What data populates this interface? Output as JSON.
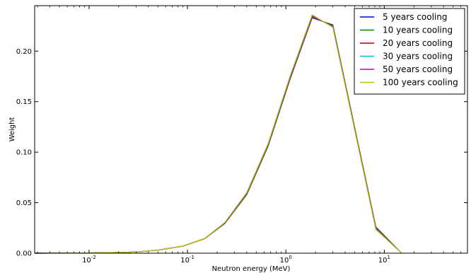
{
  "chart_data": {
    "type": "line",
    "title": "",
    "xlabel": "Neutron energy (MeV)",
    "ylabel": "Weight",
    "xscale": "log",
    "xlim": [
      0.0028,
      70
    ],
    "ylim": [
      0,
      0.245
    ],
    "x_ticks": [
      {
        "value": 0.01,
        "base": "10",
        "exp": "-2"
      },
      {
        "value": 0.1,
        "base": "10",
        "exp": "-1"
      },
      {
        "value": 1,
        "base": "10",
        "exp": "0"
      },
      {
        "value": 10,
        "base": "10",
        "exp": "1"
      }
    ],
    "y_ticks": [
      "0.00",
      "0.05",
      "0.10",
      "0.15",
      "0.20"
    ],
    "y_tick_values": [
      0,
      0.05,
      0.1,
      0.15,
      0.2
    ],
    "grid": false,
    "legend_position": "top-right",
    "series": [
      {
        "name": "5 years cooling",
        "color": "#0000cc",
        "x": [
          0.0028,
          0.01,
          0.017,
          0.03,
          0.05,
          0.09,
          0.15,
          0.24,
          0.4,
          0.66,
          1.1,
          1.85,
          3.0,
          8.2,
          15
        ],
        "y": [
          0,
          0.0003,
          0.0006,
          0.0012,
          0.003,
          0.007,
          0.0145,
          0.0295,
          0.058,
          0.106,
          0.172,
          0.233,
          0.226,
          0.026,
          0
        ]
      },
      {
        "name": "10 years cooling",
        "color": "#008800",
        "x": [
          0.0028,
          0.01,
          0.017,
          0.03,
          0.05,
          0.09,
          0.15,
          0.24,
          0.4,
          0.66,
          1.1,
          1.85,
          3.0,
          8.2,
          15
        ],
        "y": [
          0,
          0.0003,
          0.0006,
          0.0012,
          0.003,
          0.007,
          0.0145,
          0.0297,
          0.058,
          0.1065,
          0.1725,
          0.2335,
          0.2255,
          0.0255,
          0
        ]
      },
      {
        "name": "20 years cooling",
        "color": "#aa0000",
        "x": [
          0.0028,
          0.01,
          0.017,
          0.03,
          0.05,
          0.09,
          0.15,
          0.24,
          0.4,
          0.66,
          1.1,
          1.85,
          3.0,
          8.2,
          15
        ],
        "y": [
          0,
          0.0003,
          0.0006,
          0.0012,
          0.003,
          0.007,
          0.0145,
          0.0299,
          0.0585,
          0.107,
          0.173,
          0.234,
          0.225,
          0.025,
          0
        ]
      },
      {
        "name": "30 years cooling",
        "color": "#00bfbf",
        "x": [
          0.0028,
          0.01,
          0.017,
          0.03,
          0.05,
          0.09,
          0.15,
          0.24,
          0.4,
          0.66,
          1.1,
          1.85,
          3.0,
          8.2,
          15
        ],
        "y": [
          0,
          0.0003,
          0.0006,
          0.0012,
          0.003,
          0.007,
          0.0146,
          0.0301,
          0.059,
          0.1075,
          0.1735,
          0.2345,
          0.2245,
          0.0245,
          0
        ]
      },
      {
        "name": "50 years cooling",
        "color": "#bf00bf",
        "x": [
          0.0028,
          0.01,
          0.017,
          0.03,
          0.05,
          0.09,
          0.15,
          0.24,
          0.4,
          0.66,
          1.1,
          1.85,
          3.0,
          8.2,
          15
        ],
        "y": [
          0,
          0.0003,
          0.0006,
          0.0012,
          0.003,
          0.007,
          0.0146,
          0.0303,
          0.0595,
          0.108,
          0.174,
          0.235,
          0.224,
          0.024,
          0
        ]
      },
      {
        "name": "100 years cooling",
        "color": "#bfbf00",
        "x": [
          0.0028,
          0.01,
          0.017,
          0.03,
          0.05,
          0.09,
          0.15,
          0.24,
          0.4,
          0.66,
          1.1,
          1.85,
          3.0,
          8.2,
          15
        ],
        "y": [
          0,
          0.0003,
          0.0006,
          0.0012,
          0.003,
          0.007,
          0.0147,
          0.0305,
          0.06,
          0.1085,
          0.175,
          0.236,
          0.2235,
          0.0235,
          0
        ]
      }
    ]
  }
}
